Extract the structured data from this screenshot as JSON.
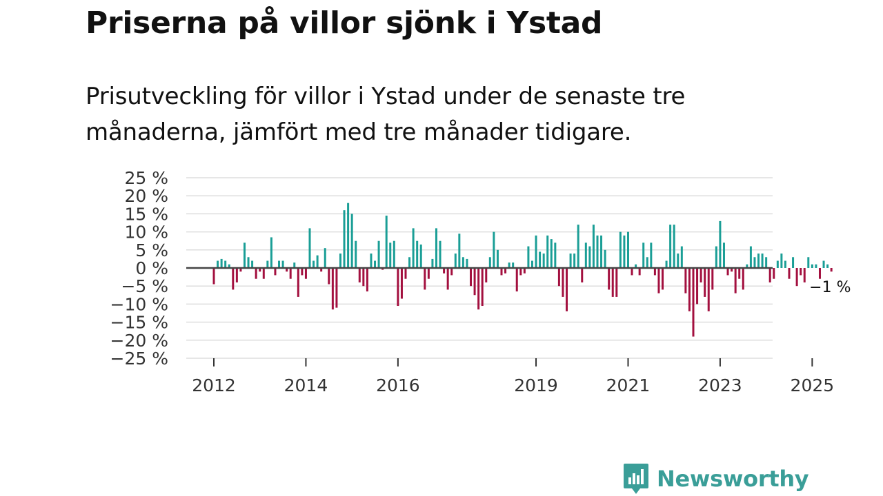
{
  "header": {
    "title": "Priserna på villor sjönk i Ystad",
    "subtitle": "Prisutveckling för villor i Ystad under de senaste tre månaderna, jämfört med tre månader tidigare."
  },
  "brand": {
    "name": "Newsworthy",
    "color": "#3a9e98"
  },
  "colors": {
    "positive": "#1a9e96",
    "negative": "#a3103f",
    "zero_line": "#444444",
    "grid": "#dddddd"
  },
  "chart_data": {
    "type": "bar",
    "title": "Priserna på villor sjönk i Ystad",
    "xlabel": "",
    "ylabel": "",
    "ylim": [
      -25,
      25
    ],
    "y_ticks": [
      25,
      20,
      15,
      10,
      5,
      0,
      -5,
      -10,
      -15,
      -20,
      -25
    ],
    "y_tick_labels": [
      "25 %",
      "20 %",
      "15 %",
      "10 %",
      "5 %",
      "0 %",
      "−5 %",
      "−10 %",
      "−15 %",
      "−20 %",
      "−25 %"
    ],
    "x_tick_labels": [
      "2012",
      "2014",
      "2016",
      "2019",
      "2021",
      "2023",
      "2025"
    ],
    "x_tick_months": [
      0,
      24,
      48,
      84,
      108,
      132,
      156
    ],
    "start": "2012-01",
    "frequency": "monthly",
    "last_label": "−1 %",
    "values": [
      -4.5,
      2,
      2.5,
      2,
      1,
      -6,
      -4,
      -1,
      7,
      3,
      2,
      -3,
      -1,
      -3,
      2,
      8.5,
      -2,
      2,
      2,
      -1,
      -3,
      1.5,
      -8,
      -2,
      -3,
      11,
      2,
      3.5,
      -1,
      5.5,
      -4.5,
      -11.5,
      -11,
      4,
      16,
      18,
      15,
      7.5,
      -4,
      -5,
      -6.5,
      4,
      2,
      7.5,
      -0.5,
      14.5,
      7,
      7.5,
      -10.5,
      -8.5,
      -3,
      3,
      11,
      7.5,
      6.5,
      -6,
      -3,
      2.5,
      11,
      7.5,
      -1.5,
      -6,
      -2,
      4,
      9.5,
      3,
      2.5,
      -5,
      -7.5,
      -11.5,
      -10.5,
      -4,
      3,
      10,
      5,
      -2,
      -1.5,
      1.5,
      1.5,
      -6.5,
      -2,
      -1.5,
      6,
      2,
      9,
      4.5,
      4,
      9,
      8,
      7,
      -5,
      -8,
      -12,
      4,
      4,
      12,
      -4,
      7,
      6,
      12,
      9,
      9,
      5,
      -6,
      -8,
      -8,
      10,
      9,
      10,
      -2,
      1,
      -2,
      7,
      3,
      7,
      -2,
      -7,
      -6,
      2,
      12,
      12,
      4,
      6,
      -7,
      -12,
      -19,
      -10,
      -4,
      -8,
      -12,
      -6,
      6,
      13,
      7,
      -2,
      -1,
      -7,
      -3,
      -6,
      1,
      6,
      3,
      4,
      4,
      3,
      -4,
      -3,
      2,
      4,
      2,
      -3,
      3,
      -5,
      -2,
      -4,
      3,
      1,
      1,
      -3,
      2,
      1,
      -1
    ]
  }
}
